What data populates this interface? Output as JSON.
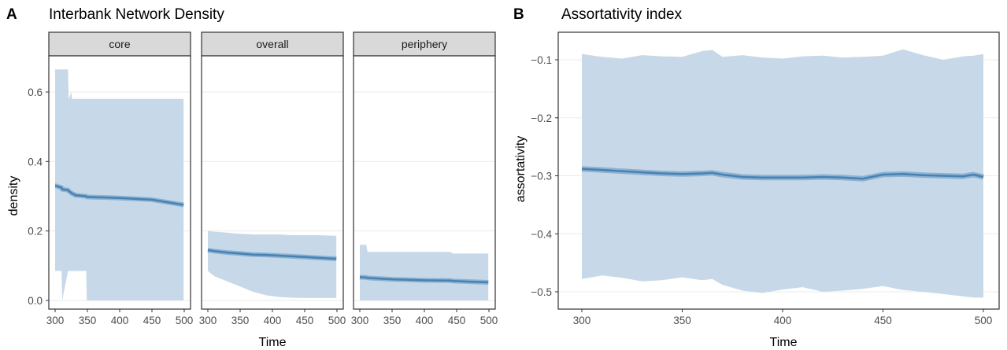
{
  "panels": {
    "A": {
      "letter": "A",
      "title": "Interbank Network Density",
      "xlabel": "Time",
      "ylabel": "density"
    },
    "B": {
      "letter": "B",
      "title": "Assortativity index",
      "xlabel": "Time",
      "ylabel": "assortativity"
    }
  },
  "colors": {
    "ribbon": "#c7d9e8",
    "line": "#4682b4",
    "line_band": "#7fa8cc",
    "strip_fill": "#d9d9d9",
    "grid": "#ebebeb",
    "panel_border": "#333333"
  },
  "chart_data": [
    {
      "type": "area",
      "title": "Interbank Network Density",
      "xlabel": "Time",
      "ylabel": "density",
      "facets": [
        "core",
        "overall",
        "periphery"
      ],
      "xlim": [
        300,
        500
      ],
      "ylim": [
        0,
        0.7
      ],
      "xticks": [
        300,
        350,
        400,
        450,
        500
      ],
      "xtick_labels": [
        "300",
        "350",
        "400",
        "450",
        "500"
      ],
      "yticks": [
        0,
        0.2,
        0.4,
        0.6
      ],
      "ytick_labels": [
        "0.0",
        "0.2",
        "0.4",
        "0.6"
      ],
      "grid": true,
      "series": [
        {
          "facet": "core",
          "x": [
            300,
            301,
            310,
            311,
            320,
            321,
            325,
            326,
            330,
            331,
            348,
            349,
            400,
            450,
            499
          ],
          "mean": [
            0.33,
            0.33,
            0.325,
            0.32,
            0.318,
            0.315,
            0.31,
            0.308,
            0.305,
            0.303,
            0.3,
            0.298,
            0.295,
            0.29,
            0.275
          ],
          "upper": [
            0.665,
            0.665,
            0.665,
            0.665,
            0.665,
            0.58,
            0.6,
            0.58,
            0.58,
            0.58,
            0.58,
            0.58,
            0.58,
            0.58,
            0.58
          ],
          "lower": [
            0.085,
            0.085,
            0.085,
            0.0,
            0.085,
            0.085,
            0.085,
            0.085,
            0.085,
            0.085,
            0.085,
            0.0,
            0.0,
            0.0,
            0.0
          ]
        },
        {
          "facet": "overall",
          "x": [
            300,
            310,
            330,
            350,
            370,
            390,
            410,
            430,
            450,
            470,
            499
          ],
          "mean": [
            0.145,
            0.142,
            0.138,
            0.135,
            0.132,
            0.131,
            0.129,
            0.127,
            0.125,
            0.123,
            0.12
          ],
          "upper": [
            0.2,
            0.198,
            0.195,
            0.192,
            0.19,
            0.19,
            0.19,
            0.188,
            0.188,
            0.188,
            0.186
          ],
          "lower": [
            0.085,
            0.07,
            0.055,
            0.04,
            0.025,
            0.015,
            0.01,
            0.008,
            0.007,
            0.007,
            0.007
          ]
        },
        {
          "facet": "periphery",
          "x": [
            300,
            310,
            312,
            320,
            350,
            400,
            440,
            445,
            470,
            499
          ],
          "mean": [
            0.067,
            0.066,
            0.065,
            0.064,
            0.061,
            0.058,
            0.057,
            0.056,
            0.054,
            0.052
          ],
          "upper": [
            0.16,
            0.16,
            0.14,
            0.14,
            0.14,
            0.14,
            0.14,
            0.135,
            0.135,
            0.135
          ],
          "lower": [
            0.0,
            0.0,
            0.0,
            0.0,
            0.0,
            0.0,
            0.0,
            0.0,
            0.0,
            0.0
          ]
        }
      ]
    },
    {
      "type": "area",
      "title": "Assortativity index",
      "xlabel": "Time",
      "ylabel": "assortativity",
      "xlim": [
        290,
        505
      ],
      "ylim": [
        -0.53,
        -0.075
      ],
      "xticks": [
        300,
        350,
        400,
        450,
        500
      ],
      "xtick_labels": [
        "300",
        "350",
        "400",
        "450",
        "500"
      ],
      "yticks": [
        -0.5,
        -0.4,
        -0.3,
        -0.2,
        -0.1
      ],
      "ytick_labels": [
        "−0.5",
        "−0.4",
        "−0.3",
        "−0.2",
        "−0.1"
      ],
      "grid": true,
      "series": [
        {
          "x": [
            300,
            310,
            320,
            330,
            340,
            350,
            360,
            365,
            370,
            380,
            390,
            400,
            410,
            420,
            430,
            440,
            450,
            460,
            470,
            480,
            490,
            495,
            500
          ],
          "mean": [
            -0.288,
            -0.29,
            -0.292,
            -0.294,
            -0.296,
            -0.297,
            -0.296,
            -0.295,
            -0.298,
            -0.302,
            -0.303,
            -0.303,
            -0.303,
            -0.302,
            -0.303,
            -0.305,
            -0.298,
            -0.297,
            -0.299,
            -0.3,
            -0.301,
            -0.298,
            -0.302
          ],
          "upper": [
            -0.09,
            -0.095,
            -0.098,
            -0.092,
            -0.094,
            -0.095,
            -0.085,
            -0.083,
            -0.095,
            -0.092,
            -0.096,
            -0.098,
            -0.094,
            -0.093,
            -0.096,
            -0.095,
            -0.093,
            -0.082,
            -0.092,
            -0.1,
            -0.094,
            -0.093,
            -0.09
          ],
          "lower": [
            -0.478,
            -0.472,
            -0.476,
            -0.482,
            -0.48,
            -0.475,
            -0.48,
            -0.478,
            -0.488,
            -0.498,
            -0.502,
            -0.496,
            -0.492,
            -0.5,
            -0.498,
            -0.495,
            -0.49,
            -0.497,
            -0.5,
            -0.504,
            -0.508,
            -0.51,
            -0.51
          ]
        }
      ]
    }
  ]
}
